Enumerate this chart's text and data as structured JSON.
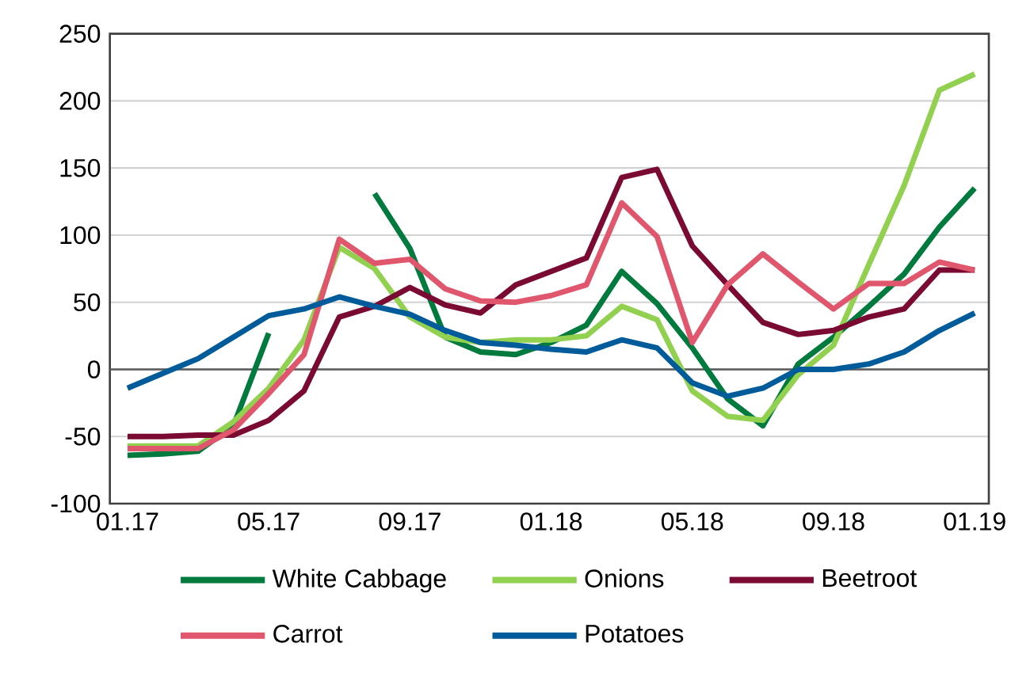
{
  "chart_data": {
    "type": "line",
    "categories": [
      "01.17",
      null,
      null,
      null,
      "05.17",
      null,
      null,
      null,
      "09.17",
      null,
      null,
      null,
      "01.18",
      null,
      null,
      null,
      "05.18",
      null,
      null,
      null,
      "09.18",
      null,
      null,
      null,
      "01.19"
    ],
    "series": [
      {
        "name": "White Cabbage",
        "color": "#007a3d",
        "values": [
          -64,
          -63,
          -61,
          -42,
          27,
          null,
          null,
          131,
          90,
          24,
          13,
          11,
          20,
          33,
          73,
          49,
          16,
          -22,
          -42,
          4,
          24,
          47,
          71,
          106,
          135
        ]
      },
      {
        "name": "Onions",
        "color": "#92d050",
        "values": [
          -57,
          -57,
          -57,
          -39,
          -14,
          22,
          91,
          75,
          39,
          24,
          20,
          22,
          22,
          25,
          47,
          37,
          -16,
          -35,
          -38,
          -4,
          18,
          78,
          137,
          208,
          220
        ]
      },
      {
        "name": "Beetroot",
        "color": "#7b0a32",
        "values": [
          -50,
          -50,
          -49,
          -49,
          -38,
          -16,
          39,
          47,
          61,
          48,
          42,
          63,
          73,
          83,
          143,
          149,
          92,
          63,
          35,
          26,
          29,
          39,
          45,
          74,
          74
        ]
      },
      {
        "name": "Carrot",
        "color": "#e0566c",
        "values": [
          -59,
          -59,
          -59,
          -45,
          -18,
          11,
          97,
          79,
          82,
          60,
          51,
          50,
          55,
          63,
          124,
          99,
          20,
          63,
          86,
          65,
          45,
          64,
          64,
          80,
          74
        ]
      },
      {
        "name": "Potatoes",
        "color": "#005b9a",
        "values": [
          -14,
          -3,
          8,
          24,
          40,
          45,
          54,
          47,
          41,
          29,
          20,
          18,
          15,
          13,
          22,
          16,
          -10,
          -20,
          -14,
          0,
          0,
          4,
          13,
          29,
          42
        ]
      }
    ],
    "ylim": [
      -100,
      250
    ],
    "yticks": [
      -100,
      -50,
      0,
      50,
      100,
      150,
      200,
      250
    ],
    "grid": "y",
    "legend": "bottom",
    "marker": "none",
    "line_style": "solid"
  }
}
